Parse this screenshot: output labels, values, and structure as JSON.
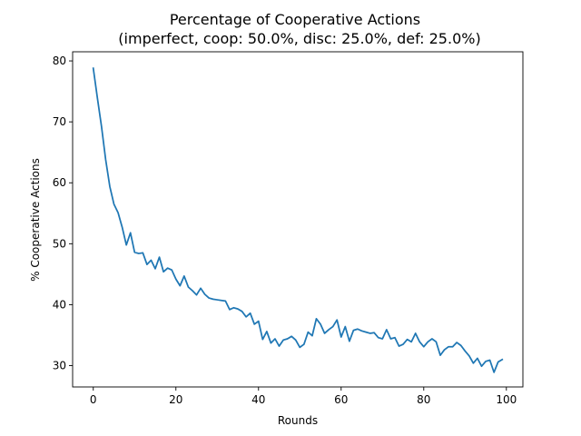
{
  "chart_data": {
    "type": "line",
    "title": "Percentage of Cooperative Actions",
    "subtitle": "(imperfect, coop: 50.0%, disc: 25.0%, def: 25.0%)",
    "xlabel": "Rounds",
    "ylabel": "% Cooperative Actions",
    "xlim": [
      -5,
      104
    ],
    "ylim": [
      26.5,
      81.5
    ],
    "xticks": [
      0,
      20,
      40,
      60,
      80,
      100
    ],
    "yticks": [
      30,
      40,
      50,
      60,
      70,
      80
    ],
    "grid": false,
    "legend": "none",
    "line_color": "#1f77b4",
    "series": [
      {
        "x": [
          0,
          1,
          2,
          3,
          4,
          5,
          6,
          7,
          8,
          9,
          10,
          11,
          12,
          13,
          14,
          15,
          16,
          17,
          18,
          19,
          20,
          21,
          22,
          23,
          24,
          25,
          26,
          27,
          28,
          29,
          30,
          31,
          32,
          33,
          34,
          35,
          36,
          37,
          38,
          39,
          40,
          41,
          42,
          43,
          44,
          45,
          46,
          47,
          48,
          49,
          50,
          51,
          52,
          53,
          54,
          55,
          56,
          57,
          58,
          59,
          60,
          61,
          62,
          63,
          64,
          65,
          66,
          67,
          68,
          69,
          70,
          71,
          72,
          73,
          74,
          75,
          76,
          77,
          78,
          79,
          80,
          81,
          82,
          83,
          84,
          85,
          86,
          87,
          88,
          89,
          90,
          91,
          92,
          93,
          94,
          95,
          96,
          97,
          98,
          99
        ],
        "y": [
          78.8,
          73.9,
          69.2,
          63.8,
          59.4,
          56.5,
          55.1,
          52.7,
          49.8,
          51.8,
          48.6,
          48.4,
          48.5,
          46.6,
          47.3,
          45.9,
          47.8,
          45.4,
          46.0,
          45.7,
          44.2,
          43.1,
          44.7,
          42.9,
          42.3,
          41.6,
          42.7,
          41.7,
          41.1,
          40.9,
          40.8,
          40.7,
          40.6,
          39.2,
          39.5,
          39.3,
          38.9,
          38.0,
          38.6,
          36.8,
          37.3,
          34.3,
          35.6,
          33.7,
          34.4,
          33.2,
          34.2,
          34.4,
          34.8,
          34.2,
          33.0,
          33.5,
          35.5,
          34.9,
          37.7,
          36.8,
          35.3,
          35.9,
          36.4,
          37.5,
          34.7,
          36.4,
          34.0,
          35.8,
          36.0,
          35.7,
          35.5,
          35.3,
          35.4,
          34.6,
          34.4,
          35.9,
          34.4,
          34.6,
          33.2,
          33.5,
          34.3,
          33.9,
          35.3,
          33.9,
          33.1,
          33.9,
          34.4,
          33.9,
          31.7,
          32.6,
          33.1,
          33.1,
          33.8,
          33.3,
          32.4,
          31.6,
          30.4,
          31.2,
          29.9,
          30.7,
          30.9,
          28.9,
          30.6,
          31.0
        ]
      }
    ]
  }
}
